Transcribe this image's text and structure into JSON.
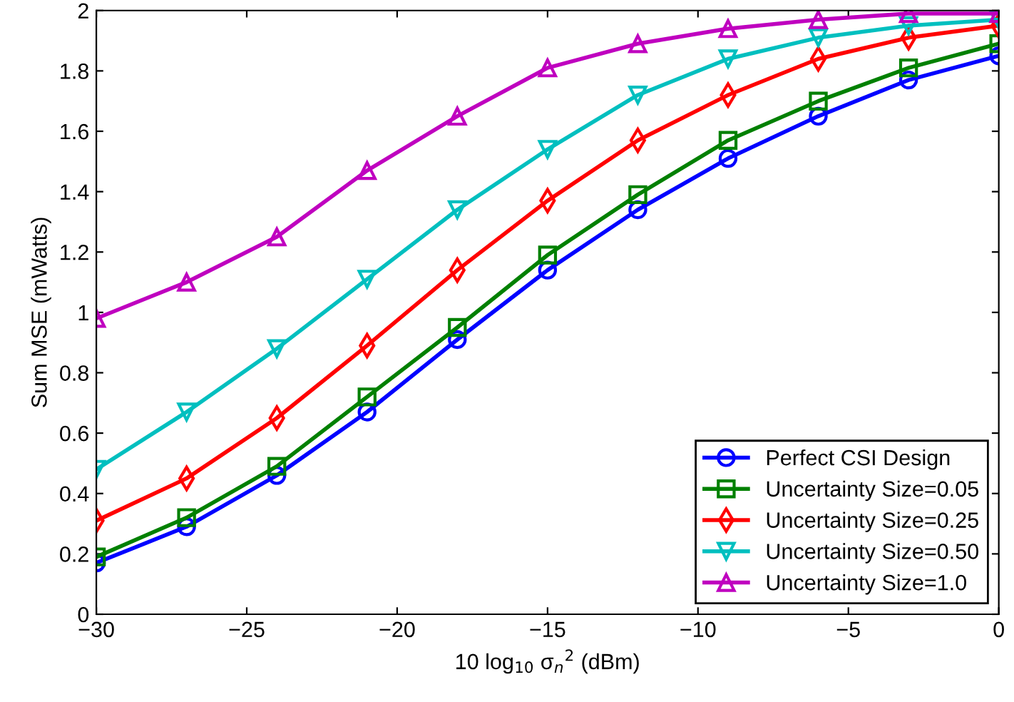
{
  "chart_data": {
    "type": "line",
    "xlabel": "10 log$_{10}$ σ$_{n}$$^{2}$ (dBm)",
    "ylabel": "Sum MSE (mWatts)",
    "x": [
      -30,
      -27,
      -24,
      -21,
      -18,
      -15,
      -12,
      -9,
      -6,
      -3,
      0
    ],
    "series": [
      {
        "name": "Perfect CSI Design",
        "color": "#0000ff",
        "marker": "circle",
        "values": [
          0.17,
          0.29,
          0.46,
          0.67,
          0.91,
          1.14,
          1.34,
          1.51,
          1.65,
          1.77,
          1.85
        ]
      },
      {
        "name": "Uncertainty Size=0.05",
        "color": "#008000",
        "marker": "square",
        "values": [
          0.19,
          0.32,
          0.49,
          0.72,
          0.95,
          1.19,
          1.39,
          1.57,
          1.7,
          1.81,
          1.89
        ]
      },
      {
        "name": "Uncertainty Size=0.25",
        "color": "#ff0000",
        "marker": "diamond",
        "values": [
          0.31,
          0.45,
          0.65,
          0.89,
          1.14,
          1.37,
          1.57,
          1.72,
          1.84,
          1.91,
          1.95
        ]
      },
      {
        "name": "Uncertainty Size=0.50",
        "color": "#00bfbf",
        "marker": "triangle_down",
        "values": [
          0.48,
          0.67,
          0.88,
          1.11,
          1.34,
          1.54,
          1.72,
          1.84,
          1.91,
          1.95,
          1.97
        ]
      },
      {
        "name": "Uncertainty Size=1.0",
        "color": "#bf00bf",
        "marker": "triangle",
        "values": [
          0.98,
          1.1,
          1.25,
          1.47,
          1.65,
          1.81,
          1.89,
          1.94,
          1.97,
          1.99,
          1.99
        ]
      }
    ],
    "xlim": [
      -30,
      0
    ],
    "xticks": [
      {
        "value": -30,
        "label": "−30"
      },
      {
        "value": -25,
        "label": "−25"
      },
      {
        "value": -20,
        "label": "−20"
      },
      {
        "value": -15,
        "label": "−15"
      },
      {
        "value": -10,
        "label": "−10"
      },
      {
        "value": -5,
        "label": "−5"
      },
      0
    ],
    "ylim": [
      0,
      2
    ],
    "yticks": [
      0,
      0.2,
      0.4,
      0.6,
      0.8,
      1,
      1.2,
      1.4,
      1.6,
      1.8,
      2
    ],
    "grid": false,
    "legend": "bottom right",
    "line_style": "solid"
  }
}
